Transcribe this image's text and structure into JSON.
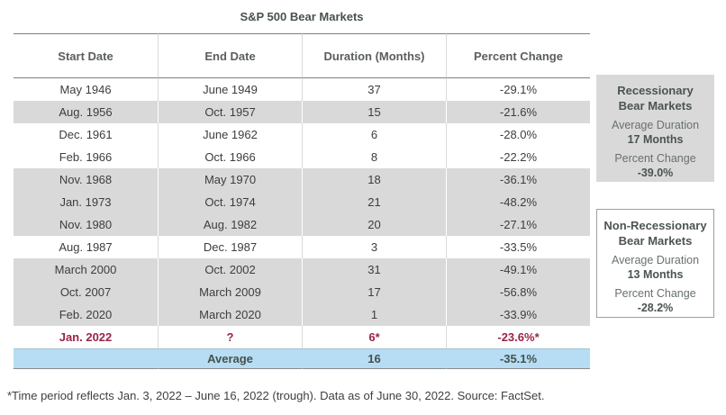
{
  "chart_data": {
    "type": "table",
    "title": "S&P 500 Bear Markets",
    "columns": [
      "Start Date",
      "End Date",
      "Duration (Months)",
      "Percent Change"
    ],
    "rows": [
      {
        "start_date": "May 1946",
        "end_date": "June 1949",
        "duration_months": "37",
        "percent_change": "-29.1%",
        "variant": "plain"
      },
      {
        "start_date": "Aug. 1956",
        "end_date": "Oct. 1957",
        "duration_months": "15",
        "percent_change": "-21.6%",
        "variant": "recession"
      },
      {
        "start_date": "Dec. 1961",
        "end_date": "June 1962",
        "duration_months": "6",
        "percent_change": "-28.0%",
        "variant": "plain"
      },
      {
        "start_date": "Feb. 1966",
        "end_date": "Oct. 1966",
        "duration_months": "8",
        "percent_change": "-22.2%",
        "variant": "plain"
      },
      {
        "start_date": "Nov. 1968",
        "end_date": "May 1970",
        "duration_months": "18",
        "percent_change": "-36.1%",
        "variant": "recession"
      },
      {
        "start_date": "Jan. 1973",
        "end_date": "Oct. 1974",
        "duration_months": "21",
        "percent_change": "-48.2%",
        "variant": "recession"
      },
      {
        "start_date": "Nov. 1980",
        "end_date": "Aug. 1982",
        "duration_months": "20",
        "percent_change": "-27.1%",
        "variant": "recession"
      },
      {
        "start_date": "Aug. 1987",
        "end_date": "Dec. 1987",
        "duration_months": "3",
        "percent_change": "-33.5%",
        "variant": "plain"
      },
      {
        "start_date": "March 2000",
        "end_date": "Oct. 2002",
        "duration_months": "31",
        "percent_change": "-49.1%",
        "variant": "recession"
      },
      {
        "start_date": "Oct. 2007",
        "end_date": "March 2009",
        "duration_months": "17",
        "percent_change": "-56.8%",
        "variant": "recession"
      },
      {
        "start_date": "Feb. 2020",
        "end_date": "March 2020",
        "duration_months": "1",
        "percent_change": "-33.9%",
        "variant": "recession"
      },
      {
        "start_date": "Jan. 2022",
        "end_date": "?",
        "duration_months": "6*",
        "percent_change": "-23.6%*",
        "variant": "current"
      }
    ],
    "average_row": {
      "label": "Average",
      "duration_months": "16",
      "percent_change": "-35.1%"
    },
    "layout_hints": {
      "shaded_rows_meaning": "recessionary bear markets",
      "grid": "column separators + header and bottom rules"
    }
  },
  "panels": {
    "recessionary": {
      "title": "Recessionary\nBear Markets",
      "avg_duration_label": "Average Duration",
      "avg_duration_value": "17 Months",
      "pct_change_label": "Percent Change",
      "pct_change_value": "-39.0%"
    },
    "non_recessionary": {
      "title": "Non-Recessionary\nBear Markets",
      "avg_duration_label": "Average Duration",
      "avg_duration_value": "13 Months",
      "pct_change_label": "Percent Change",
      "pct_change_value": "-28.2%"
    }
  },
  "footnote": "*Time period reflects Jan. 3, 2022 – June 16, 2022 (trough). Data as of June 30, 2022. Source: FactSet.",
  "colors": {
    "shaded_row": "#d9d9d9",
    "average_row": "#b6ddf4",
    "current_row_text": "#9a2348",
    "panel_bg": "#d9d9d9",
    "panel_border": "#9e9e9e",
    "rule_dark": "#7f7f7f",
    "body_text": "#3d3d3d",
    "heading_text": "#47524c"
  }
}
